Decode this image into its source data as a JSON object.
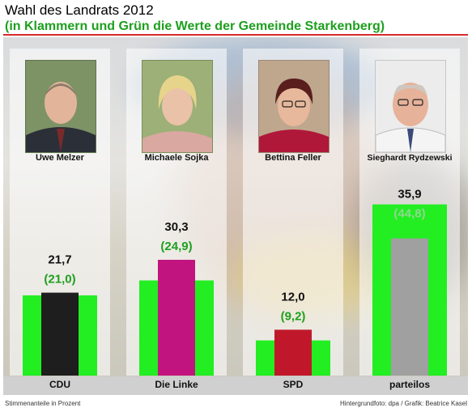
{
  "title": "Wahl des Landrats 2012",
  "subtitle": "(in Klammern und Grün die Werte der Gemeinde Starkenberg)",
  "footer": {
    "left": "Stimmenanteile in Prozent",
    "right": "Hintergrundfoto: dpa  / Grafik: Beatrice Kasel"
  },
  "colors": {
    "green": "#22ee22",
    "green_text": "#1ea01e",
    "title_rule": "#d62a2a",
    "party_cdu": "#1e1e1e",
    "party_linke": "#c2147e",
    "party_spd": "#c0182a",
    "party_parteilos": "#a0a0a0"
  },
  "chart_data": {
    "type": "bar",
    "title": "Wahl des Landrats 2012",
    "subtitle": "(in Klammern und Grün die Werte der Gemeinde Starkenberg)",
    "categories": [
      "CDU",
      "Die Linke",
      "SPD",
      "parteilos"
    ],
    "candidates": [
      "Uwe Melzer",
      "Michaele Sojka",
      "Bettina Feller",
      "Sieghardt Rydzewski"
    ],
    "label_total": [
      "21,7",
      "30,3",
      "12,0",
      "35,9"
    ],
    "label_starkenberg": [
      "(21,0)",
      "(24,9)",
      "(9,2)",
      "(44,8)"
    ],
    "series": [
      {
        "values": [
          21.7,
          30.3,
          12.0,
          35.9
        ]
      },
      {
        "values": [
          21.0,
          24.9,
          9.2,
          44.8
        ]
      }
    ],
    "unit": "Stimmenanteile in Prozent",
    "grid": false,
    "legend": "none"
  }
}
